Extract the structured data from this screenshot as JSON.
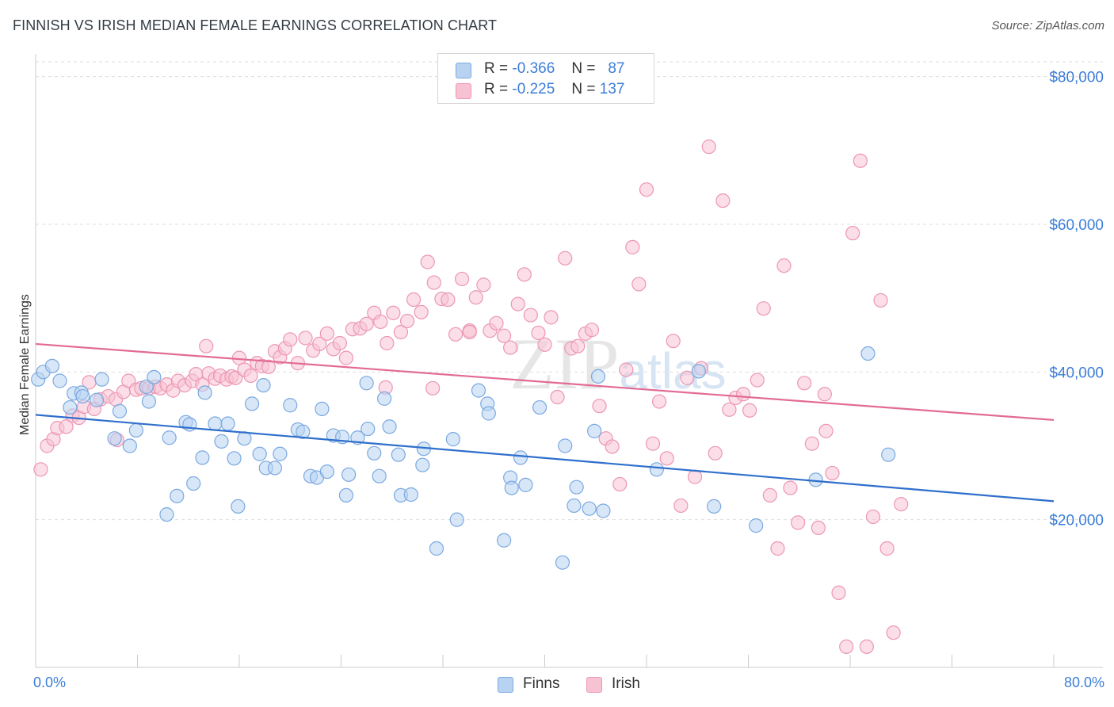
{
  "header": {
    "title": "FINNISH VS IRISH MEDIAN FEMALE EARNINGS CORRELATION CHART",
    "source": "Source: ZipAtlas.com"
  },
  "legend": {
    "finns": {
      "r_label": "R =",
      "r_value": "-0.366",
      "n_label": "N =",
      "n_value": "87",
      "name": "Finns"
    },
    "irish": {
      "r_label": "R =",
      "r_value": "-0.225",
      "n_label": "N =",
      "n_value": "137",
      "name": "Irish"
    }
  },
  "colors": {
    "finns_fill": "#b8d3f2",
    "finns_stroke": "#7aa9e0",
    "finns_line": "#2f6fcc",
    "irish_fill": "#f7c3d3",
    "irish_stroke": "#ec97b3",
    "irish_line": "#e26b95",
    "axis_text": "#3b7dd8",
    "grid": "#dddddd"
  },
  "chart_data": {
    "type": "scatter",
    "title": "FINNISH VS IRISH MEDIAN FEMALE EARNINGS CORRELATION CHART",
    "xlabel": "",
    "ylabel": "Median Female Earnings",
    "xlim": [
      0,
      80
    ],
    "ylim": [
      0,
      82000
    ],
    "x_tick_labels": [
      "0.0%",
      "80.0%"
    ],
    "y_ticks": [
      20000,
      40000,
      60000,
      80000
    ],
    "y_tick_labels": [
      "$20,000",
      "$40,000",
      "$60,000",
      "$80,000"
    ],
    "grid": "horizontal dashed",
    "legend_position": "top-center",
    "watermark": "ZIPatlas",
    "series": [
      {
        "name": "Finns",
        "r": -0.366,
        "n": 87,
        "trend": {
          "x": [
            0,
            80
          ],
          "y": [
            34200,
            22500
          ]
        },
        "points": [
          [
            0.2,
            39000
          ],
          [
            0.6,
            40000
          ],
          [
            1.3,
            40800
          ],
          [
            1.9,
            38800
          ],
          [
            2.7,
            35200
          ],
          [
            3,
            37100
          ],
          [
            3.6,
            37200
          ],
          [
            3.7,
            36700
          ],
          [
            4.8,
            36200
          ],
          [
            5.2,
            39000
          ],
          [
            6.2,
            31000
          ],
          [
            6.6,
            34700
          ],
          [
            7.4,
            30000
          ],
          [
            7.9,
            32100
          ],
          [
            8.7,
            38000
          ],
          [
            8.9,
            36000
          ],
          [
            9.3,
            39300
          ],
          [
            10.3,
            20700
          ],
          [
            10.5,
            31100
          ],
          [
            11.1,
            23200
          ],
          [
            11.8,
            33200
          ],
          [
            12.1,
            32900
          ],
          [
            12.4,
            24900
          ],
          [
            13.1,
            28400
          ],
          [
            13.3,
            37200
          ],
          [
            14.1,
            33000
          ],
          [
            14.6,
            30600
          ],
          [
            15.1,
            33000
          ],
          [
            15.6,
            28300
          ],
          [
            15.9,
            21800
          ],
          [
            16.4,
            31000
          ],
          [
            17,
            35700
          ],
          [
            17.6,
            28900
          ],
          [
            17.9,
            38200
          ],
          [
            18.1,
            27000
          ],
          [
            18.8,
            27000
          ],
          [
            19.2,
            28900
          ],
          [
            20,
            35500
          ],
          [
            20.6,
            32200
          ],
          [
            21,
            31900
          ],
          [
            21.6,
            25900
          ],
          [
            22.1,
            25700
          ],
          [
            22.5,
            35000
          ],
          [
            22.9,
            26500
          ],
          [
            23.4,
            31400
          ],
          [
            24.1,
            31200
          ],
          [
            24.4,
            23300
          ],
          [
            24.6,
            26100
          ],
          [
            25.3,
            31100
          ],
          [
            26,
            38500
          ],
          [
            26.1,
            32300
          ],
          [
            26.6,
            29000
          ],
          [
            27,
            25900
          ],
          [
            27.4,
            36400
          ],
          [
            27.8,
            32600
          ],
          [
            28.5,
            28800
          ],
          [
            28.7,
            23300
          ],
          [
            29.5,
            23400
          ],
          [
            30.4,
            27400
          ],
          [
            30.5,
            29600
          ],
          [
            31.5,
            16100
          ],
          [
            32.8,
            30900
          ],
          [
            33.1,
            20000
          ],
          [
            34.8,
            37500
          ],
          [
            35.5,
            35700
          ],
          [
            35.6,
            34400
          ],
          [
            36.8,
            17200
          ],
          [
            37.3,
            25700
          ],
          [
            37.4,
            24300
          ],
          [
            38.1,
            28400
          ],
          [
            38.5,
            24700
          ],
          [
            39.6,
            35200
          ],
          [
            41.6,
            30000
          ],
          [
            42.5,
            24400
          ],
          [
            43.5,
            21500
          ],
          [
            43.9,
            32000
          ],
          [
            44.2,
            39400
          ],
          [
            48.8,
            26800
          ],
          [
            52.1,
            40100
          ],
          [
            53.3,
            21800
          ],
          [
            56.6,
            19200
          ],
          [
            61.3,
            25400
          ],
          [
            65.4,
            42500
          ],
          [
            67,
            28800
          ],
          [
            42.3,
            21900
          ],
          [
            41.4,
            14200
          ],
          [
            44.6,
            21200
          ]
        ]
      },
      {
        "name": "Irish",
        "r": -0.225,
        "n": 137,
        "trend": {
          "x": [
            0,
            80
          ],
          "y": [
            43800,
            33500
          ]
        },
        "points": [
          [
            0.4,
            26800
          ],
          [
            0.9,
            30000
          ],
          [
            1.4,
            30900
          ],
          [
            1.7,
            32400
          ],
          [
            2.4,
            32600
          ],
          [
            2.9,
            34100
          ],
          [
            3.4,
            33800
          ],
          [
            3.8,
            35300
          ],
          [
            4.2,
            38600
          ],
          [
            4.6,
            35000
          ],
          [
            5.1,
            36300
          ],
          [
            5.7,
            36700
          ],
          [
            6.3,
            36300
          ],
          [
            6.9,
            37300
          ],
          [
            7.3,
            38800
          ],
          [
            7.9,
            37600
          ],
          [
            8.3,
            37800
          ],
          [
            8.9,
            37800
          ],
          [
            9.4,
            38000
          ],
          [
            9.8,
            37800
          ],
          [
            10.3,
            38300
          ],
          [
            10.8,
            37500
          ],
          [
            11.2,
            38800
          ],
          [
            11.7,
            38200
          ],
          [
            12.3,
            38800
          ],
          [
            12.6,
            39700
          ],
          [
            13.1,
            38300
          ],
          [
            13.6,
            39800
          ],
          [
            14.1,
            39100
          ],
          [
            14.5,
            39500
          ],
          [
            15,
            39000
          ],
          [
            15.4,
            39400
          ],
          [
            15.7,
            39200
          ],
          [
            16,
            41900
          ],
          [
            16.4,
            40300
          ],
          [
            16.9,
            39500
          ],
          [
            17.4,
            41200
          ],
          [
            17.8,
            40800
          ],
          [
            18.3,
            40700
          ],
          [
            18.8,
            42800
          ],
          [
            19.2,
            42000
          ],
          [
            19.6,
            43200
          ],
          [
            20,
            44400
          ],
          [
            20.6,
            41200
          ],
          [
            21.2,
            44600
          ],
          [
            21.8,
            42900
          ],
          [
            22.3,
            43800
          ],
          [
            22.9,
            45200
          ],
          [
            23.4,
            43100
          ],
          [
            23.9,
            43900
          ],
          [
            24.4,
            41900
          ],
          [
            24.9,
            45800
          ],
          [
            25.5,
            45900
          ],
          [
            26,
            46500
          ],
          [
            26.6,
            48000
          ],
          [
            27.1,
            46800
          ],
          [
            27.6,
            43900
          ],
          [
            28.1,
            48000
          ],
          [
            28.7,
            45400
          ],
          [
            29.2,
            46900
          ],
          [
            29.7,
            49800
          ],
          [
            30.3,
            48100
          ],
          [
            30.8,
            54900
          ],
          [
            31.3,
            52100
          ],
          [
            31.9,
            49900
          ],
          [
            32.4,
            49800
          ],
          [
            33,
            45100
          ],
          [
            33.5,
            52600
          ],
          [
            34.1,
            45600
          ],
          [
            34.6,
            50100
          ],
          [
            35.2,
            51800
          ],
          [
            35.7,
            45600
          ],
          [
            36.2,
            46600
          ],
          [
            36.8,
            44900
          ],
          [
            37.3,
            43300
          ],
          [
            37.9,
            49200
          ],
          [
            38.4,
            53200
          ],
          [
            38.9,
            47700
          ],
          [
            39.5,
            45300
          ],
          [
            40,
            43700
          ],
          [
            40.5,
            47400
          ],
          [
            41,
            36600
          ],
          [
            41.6,
            55400
          ],
          [
            42.1,
            43200
          ],
          [
            42.6,
            43500
          ],
          [
            43.2,
            45200
          ],
          [
            43.7,
            45700
          ],
          [
            44.3,
            35400
          ],
          [
            44.8,
            31000
          ],
          [
            45.3,
            29900
          ],
          [
            45.9,
            24800
          ],
          [
            46.4,
            40300
          ],
          [
            46.9,
            56900
          ],
          [
            47.4,
            51900
          ],
          [
            48,
            64700
          ],
          [
            48.5,
            30300
          ],
          [
            49,
            36000
          ],
          [
            49.6,
            28300
          ],
          [
            50.1,
            44200
          ],
          [
            50.7,
            21900
          ],
          [
            51.2,
            39200
          ],
          [
            51.8,
            25800
          ],
          [
            52.3,
            40500
          ],
          [
            52.9,
            70500
          ],
          [
            53.4,
            29000
          ],
          [
            54,
            63200
          ],
          [
            54.5,
            34900
          ],
          [
            55,
            36500
          ],
          [
            55.6,
            37000
          ],
          [
            56.1,
            34800
          ],
          [
            56.7,
            38900
          ],
          [
            57.2,
            48600
          ],
          [
            57.7,
            23300
          ],
          [
            58.3,
            16100
          ],
          [
            58.8,
            54400
          ],
          [
            59.3,
            24300
          ],
          [
            59.9,
            19600
          ],
          [
            60.4,
            38500
          ],
          [
            61,
            30300
          ],
          [
            61.5,
            18900
          ],
          [
            62.1,
            32000
          ],
          [
            62.6,
            26300
          ],
          [
            63.1,
            10100
          ],
          [
            63.7,
            2800
          ],
          [
            64.2,
            58800
          ],
          [
            64.8,
            68600
          ],
          [
            65.3,
            2800
          ],
          [
            65.8,
            20400
          ],
          [
            66.4,
            49700
          ],
          [
            66.9,
            16100
          ],
          [
            67.4,
            4700
          ],
          [
            68,
            22100
          ],
          [
            31.2,
            37800
          ],
          [
            34.1,
            45400
          ],
          [
            27.5,
            37900
          ],
          [
            13.4,
            43500
          ],
          [
            6.4,
            30800
          ],
          [
            62,
            37000
          ]
        ]
      }
    ]
  }
}
